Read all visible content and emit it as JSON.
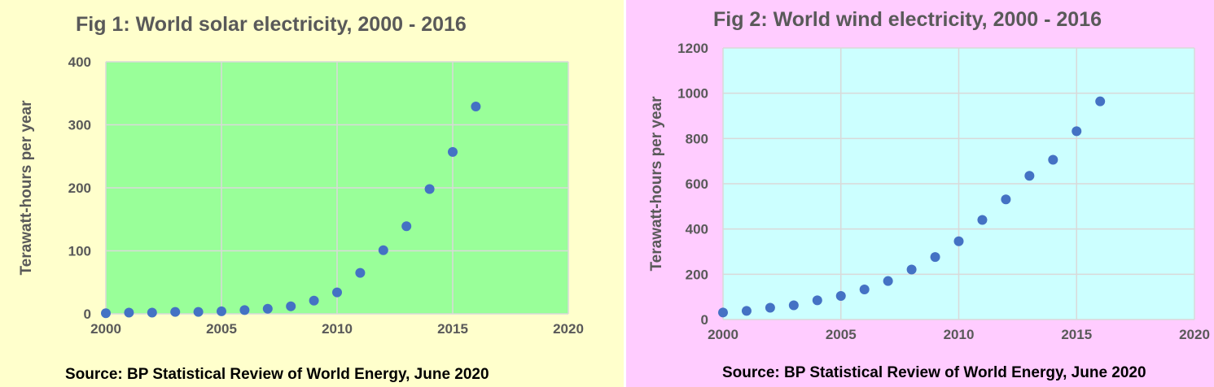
{
  "charts": [
    {
      "title": "Fig 1: World solar electricity, 2000 - 2016",
      "source": "Source: BP Statistical Review of World Energy, June 2020",
      "colors": {
        "panel_bg": "#ffffcc",
        "plot_bg": "#99ff99",
        "marker": "#4472c4",
        "grid": "#d9d9d9"
      }
    },
    {
      "title": "Fig 2: World wind electricity, 2000 - 2016",
      "source": "Source: BP Statistical Review of World Energy, June 2020",
      "colors": {
        "panel_bg": "#ffccff",
        "plot_bg": "#ccffff",
        "marker": "#4472c4",
        "grid": "#d9d9d9"
      }
    }
  ],
  "chart_data": [
    {
      "type": "scatter",
      "title": "Fig 1: World solar electricity, 2000 - 2016",
      "xlabel": "",
      "ylabel": "Terawatt-hours per year",
      "xlim": [
        2000,
        2020
      ],
      "ylim": [
        0,
        400
      ],
      "xticks": [
        2000,
        2005,
        2010,
        2015,
        2020
      ],
      "yticks": [
        0,
        100,
        200,
        300,
        400
      ],
      "grid": true,
      "x": [
        2000,
        2001,
        2002,
        2003,
        2004,
        2005,
        2006,
        2007,
        2008,
        2009,
        2010,
        2011,
        2012,
        2013,
        2014,
        2015,
        2016
      ],
      "y": [
        1,
        2,
        2,
        3,
        3,
        4,
        6,
        8,
        12,
        21,
        34,
        65,
        101,
        139,
        198,
        257,
        329
      ]
    },
    {
      "type": "scatter",
      "title": "Fig 2: World wind electricity, 2000 - 2016",
      "xlabel": "",
      "ylabel": "Terawatt-hours per year",
      "xlim": [
        2000,
        2020
      ],
      "ylim": [
        0,
        1200
      ],
      "xticks": [
        2000,
        2005,
        2010,
        2015,
        2020
      ],
      "yticks": [
        0,
        200,
        400,
        600,
        800,
        1000,
        1200
      ],
      "grid": true,
      "x": [
        2000,
        2001,
        2002,
        2003,
        2004,
        2005,
        2006,
        2007,
        2008,
        2009,
        2010,
        2011,
        2012,
        2013,
        2014,
        2015,
        2016
      ],
      "y": [
        31,
        38,
        52,
        63,
        85,
        104,
        133,
        170,
        221,
        276,
        346,
        440,
        531,
        635,
        706,
        832,
        964
      ]
    }
  ]
}
